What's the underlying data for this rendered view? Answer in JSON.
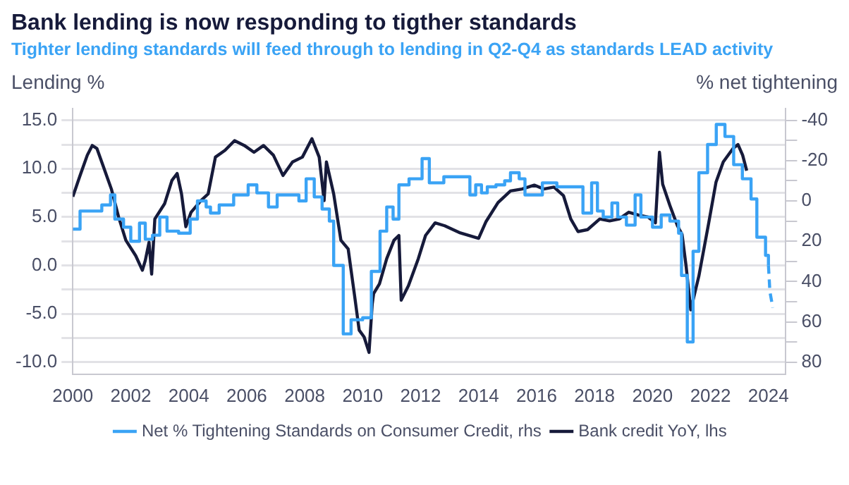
{
  "chart_data": {
    "type": "line",
    "title": "Bank lending is now responding to tigther standards",
    "subtitle": "Tighter lending standards will feed through to lending in Q2-Q4 as standards LEAD activity",
    "ylabel": "Lending %",
    "y2label": "% net tightening",
    "xlim": [
      2000,
      2024.6
    ],
    "xticks": [
      2000,
      2002,
      2004,
      2006,
      2008,
      2010,
      2012,
      2014,
      2016,
      2018,
      2020,
      2022,
      2024
    ],
    "ylim": [
      -11.25,
      16.25
    ],
    "yticks": [
      {
        "value": -10,
        "label": "-10.0"
      },
      {
        "value": -7.5,
        "label": null
      },
      {
        "value": -5,
        "label": "-5.0"
      },
      {
        "value": -2.5,
        "label": null
      },
      {
        "value": 0,
        "label": "0.0"
      },
      {
        "value": 2.5,
        "label": null
      },
      {
        "value": 5,
        "label": "5.0"
      },
      {
        "value": 7.5,
        "label": null
      },
      {
        "value": 10,
        "label": "10.0"
      },
      {
        "value": 12.5,
        "label": null
      },
      {
        "value": 15,
        "label": "15.0"
      }
    ],
    "y2lim": [
      86,
      -46
    ],
    "y2ticks": [
      80,
      {
        "value": 70,
        "label": null
      },
      60,
      {
        "value": 50,
        "label": null
      },
      40,
      {
        "value": 30,
        "label": null
      },
      20,
      {
        "value": 10,
        "label": null
      },
      0,
      {
        "value": -10,
        "label": null
      },
      -20,
      {
        "value": -30,
        "label": null
      },
      -40
    ],
    "grid": "y",
    "legend": "bottom",
    "marker": "none",
    "series": [
      {
        "name": "Net % Tightening Standards on Consumer Credit, rhs",
        "type": "step",
        "axis": "y2",
        "color": "#3aa3f5",
        "x": [
          2000,
          2000.25,
          2001,
          2001.3,
          2001.45,
          2001.75,
          2002,
          2002.3,
          2002.5,
          2002.75,
          2003,
          2003.25,
          2003.65,
          2004.05,
          2004.3,
          2004.6,
          2004.75,
          2005.05,
          2005.55,
          2006.05,
          2006.35,
          2006.75,
          2007.05,
          2007.8,
          2008.05,
          2008.33,
          2008.6,
          2008.85,
          2009,
          2009.33,
          2009.6,
          2010,
          2010.3,
          2010.6,
          2010.83,
          2011.05,
          2011.25,
          2011.6,
          2012.05,
          2012.3,
          2012.8,
          2013.6,
          2013.7,
          2013.9,
          2014.1,
          2014.3,
          2014.6,
          2014.9,
          2015.1,
          2015.4,
          2015.6,
          2016.2,
          2016.7,
          2017,
          2017.6,
          2017.9,
          2018.1,
          2018.3,
          2018.6,
          2018.8,
          2019.1,
          2019.4,
          2019.6,
          2020,
          2020.3,
          2020.6,
          2020.9,
          2021,
          2021.2,
          2021.4,
          2021.6,
          2021.9,
          2022.2,
          2022.5,
          2022.8,
          2023.1,
          2023.4,
          2023.6,
          2023.9,
          2024
        ],
        "values": [
          14,
          5,
          2,
          -3,
          9,
          13,
          20,
          11,
          19,
          17,
          8,
          15,
          16,
          9,
          0,
          3,
          6,
          2,
          -3,
          -8,
          -4,
          3,
          -3,
          0,
          -11,
          -2,
          4,
          10,
          32,
          66,
          59,
          58,
          35,
          15,
          3,
          9,
          -8,
          -11,
          -21,
          -9,
          -12,
          -12,
          -3,
          -8,
          -4,
          -7,
          -8,
          -10,
          -14,
          -11,
          -3,
          -9,
          -7,
          -7,
          6,
          -9,
          5,
          8,
          1,
          8,
          12,
          -3,
          8,
          13,
          7,
          10,
          16,
          37,
          70,
          25,
          -14,
          -28,
          -38,
          -32,
          -18,
          -11,
          -1,
          18,
          27,
          32
        ]
      },
      {
        "type": "line",
        "axis": "y2",
        "line_style": "dashed",
        "color": "#3aa3f5",
        "x": [
          2024,
          2024.05,
          2024.15
        ],
        "values": [
          32,
          45,
          53
        ]
      },
      {
        "name": "Bank credit YoY, lhs",
        "type": "line",
        "color": "#161a3a",
        "x": [
          2000,
          2000.25,
          2000.5,
          2000.67,
          2000.83,
          2001.08,
          2001.33,
          2001.58,
          2001.83,
          2002.17,
          2002.4,
          2002.5,
          2002.63,
          2002.72,
          2002.83,
          2003.17,
          2003.42,
          2003.6,
          2003.75,
          2003.9,
          2004.08,
          2004.42,
          2004.67,
          2004.92,
          2005.25,
          2005.58,
          2005.92,
          2006.25,
          2006.58,
          2006.92,
          2007.25,
          2007.58,
          2007.92,
          2008.25,
          2008.5,
          2008.67,
          2008.75,
          2009,
          2009.25,
          2009.5,
          2009.72,
          2009.88,
          2010.05,
          2010.22,
          2010.33,
          2010.38,
          2010.58,
          2010.83,
          2011.08,
          2011.25,
          2011.33,
          2011.58,
          2011.92,
          2012.17,
          2012.5,
          2012.83,
          2013.33,
          2014,
          2014.25,
          2014.67,
          2015.1,
          2015.5,
          2015.92,
          2016.25,
          2016.6,
          2016.93,
          2017.18,
          2017.43,
          2017.76,
          2018.18,
          2018.52,
          2018.85,
          2019.18,
          2019.52,
          2019.85,
          2020.1,
          2020.24,
          2020.35,
          2020.6,
          2020.86,
          2021.02,
          2021.16,
          2021.32,
          2021.6,
          2021.94,
          2022.19,
          2022.44,
          2022.78,
          2022.95,
          2023.11,
          2023.25
        ],
        "values": [
          7.1,
          9.3,
          11.4,
          12.4,
          12.1,
          10,
          7.9,
          5,
          2.6,
          1,
          -0.5,
          0.5,
          2.4,
          -0.9,
          4.8,
          6.4,
          8.8,
          9.5,
          7.4,
          4,
          5.5,
          6.7,
          7.4,
          11.2,
          11.9,
          12.9,
          12.4,
          11.7,
          12.4,
          11.4,
          9.3,
          10.7,
          11.2,
          13.1,
          11.2,
          6.7,
          10.7,
          7.4,
          2.6,
          1.7,
          -3.1,
          -6.7,
          -7.4,
          -9,
          -4,
          -2.9,
          -1.9,
          0.7,
          2.6,
          3.1,
          -3.6,
          -2.1,
          0.7,
          3.1,
          4.4,
          4.1,
          3.4,
          2.8,
          4.5,
          6.5,
          7.7,
          7.9,
          8.3,
          7.9,
          8.1,
          7.2,
          4.8,
          3.5,
          3.7,
          4.8,
          4.6,
          4.8,
          5.5,
          5.2,
          5,
          4.4,
          11.7,
          8.4,
          6.2,
          4.1,
          3.2,
          -0.1,
          -4.6,
          -1.1,
          4.4,
          8.6,
          10.7,
          12.1,
          12.5,
          11.4,
          9.8
        ]
      }
    ]
  }
}
